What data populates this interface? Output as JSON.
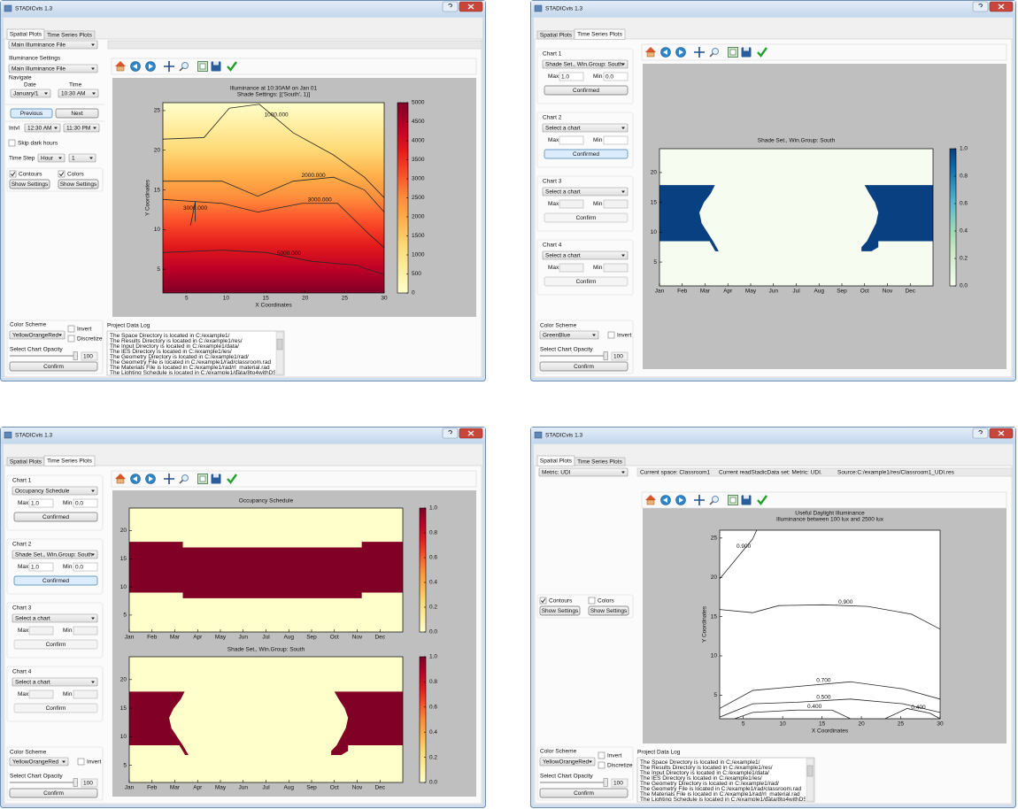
{
  "windows": [
    {
      "title": "STADICvis 1.3",
      "tabs": [
        "Spatial Plots",
        "Time Series Plots"
      ],
      "active_tab": 0,
      "file_select": "Main Illuminance File",
      "settings": {
        "label": "Illuminance Settings",
        "select": "Main Illuminance File",
        "navigate": "Navigate",
        "date_label": "Date",
        "time_label": "Time",
        "date": "January/1",
        "time": "10:30 AM",
        "previous": {
          "label": "Previous",
          "state": "focused"
        },
        "next": {
          "label": "Next",
          "state": "normal"
        },
        "intvl": "Intvl",
        "intvl_start": "12:30 AM",
        "intvl_end": "11:30 PM",
        "skip_dark": {
          "label": "Skip dark hours",
          "checked": false
        },
        "time_step": "Time Step",
        "step_unit": "Hour",
        "step_value": "1"
      },
      "contours": {
        "label": "Contours",
        "checked": true
      },
      "colors": {
        "label": "Colors",
        "checked": true
      },
      "show_settings": [
        "Show Settings",
        "Show Settings"
      ],
      "color_scheme": {
        "label": "Color Scheme",
        "select": "YellowOrangeRed",
        "invert": {
          "label": "Invert",
          "checked": false
        },
        "discretize": {
          "label": "Discretize",
          "checked": false
        },
        "opacity_label": "Select Chart Opacity",
        "opacity": "100",
        "confirm": "Confirm"
      },
      "log": {
        "label": "Project Data Log",
        "lines": [
          "The Space Directory is located in C:/example1/",
          "The Results Directory is located in C:/example1/res/",
          "The Input Directory is located in C:/example1/data/",
          "The IES Directory is located in C:/example1/ies/",
          "The Geometry Directory is located in C:/example1/rad/",
          "The Geometry File is located in C:/example1/rad/classroom.rad",
          "The Materials File is located in C:/example1/rad/rl_material.rad",
          "The Lighting Schedule is located in C:/example1/data/8to4withDST.60min.csv"
        ]
      },
      "plots": [
        {
          "type": "contour",
          "title": [
            "Illuminance at 10:30AM on Jan 01",
            "Shade Settings: [('South', 1)]"
          ],
          "xlabel": "X Coordinates",
          "ylabel": "Y Coordinates",
          "xlim": [
            2,
            30
          ],
          "ylim": [
            2,
            26
          ],
          "xticks": [
            5,
            10,
            15,
            20,
            25,
            30
          ],
          "yticks": [
            5,
            10,
            15,
            20,
            25
          ],
          "colorbar": {
            "lim": [
              0,
              5000
            ],
            "ticks": [
              0,
              500,
              1000,
              1500,
              2000,
              2500,
              3000,
              3500,
              4000,
              4500,
              5000
            ]
          },
          "contours": [
            {
              "label": "1000.000",
              "x": [
                2,
                7.2,
                10.4,
                14.2,
                18.5,
                23.6,
                27.5,
                30
              ],
              "y": [
                21.4,
                21.6,
                25.3,
                25.8,
                22.2,
                19.4,
                16.6,
                14
              ]
            },
            {
              "label": "2000.000",
              "x": [
                2,
                9.5,
                14,
                18.5,
                23.6,
                27.5,
                30
              ],
              "y": [
                16.1,
                16.1,
                14.2,
                16.1,
                16.6,
                15,
                12.2
              ]
            },
            {
              "label": "3000.000",
              "x": [
                2,
                9.5,
                14,
                19.6,
                24.1,
                28.1,
                30
              ],
              "y": [
                13.8,
                13.3,
                12.2,
                13.3,
                13.3,
                9.4,
                7.7
              ]
            },
            {
              "label": "3000.000",
              "x": [
                5.5,
                6.1,
                6.1
              ],
              "y": [
                10.5,
                13.5,
                11
              ]
            },
            {
              "label": "5000.000",
              "x": [
                2,
                9.5,
                15.1,
                20.8,
                26.4,
                30
              ],
              "y": [
                7.1,
                7.4,
                7.1,
                6,
                5.5,
                4.3
              ]
            }
          ]
        }
      ]
    },
    {
      "title": "STADICvis 1.3",
      "tabs": [
        "Spatial Plots",
        "Time Series Plots"
      ],
      "active_tab": 1,
      "charts": [
        {
          "label": "Chart 1",
          "select": "Shade Set., Win.Group: South",
          "max_label": "Max",
          "max": "1.0",
          "min_label": "Min",
          "min": "0.0",
          "button": "Confirmed",
          "state": "normal"
        },
        {
          "label": "Chart 2",
          "select": "Select a chart",
          "max_label": "Max",
          "min_label": "Min",
          "button": "Confirmed",
          "state": "focused"
        },
        {
          "label": "Chart 3",
          "select": "Select a chart",
          "max_label": "Max",
          "min_label": "Min",
          "button": "Confirm",
          "state": "disabled"
        },
        {
          "label": "Chart 4",
          "select": "Select a chart",
          "max_label": "Max",
          "min_label": "Min",
          "button": "Confirm",
          "state": "disabled"
        }
      ],
      "color_scheme": {
        "label": "Color Scheme",
        "select": "GreenBlue",
        "invert": {
          "label": "Invert",
          "checked": false
        },
        "opacity_label": "Select Chart Opacity",
        "opacity": "100",
        "confirm": "Confirm"
      },
      "plots": [
        {
          "type": "heatmap",
          "title": [
            "Shade Set., Win.Group: South"
          ],
          "categories": [
            "Jan",
            "Feb",
            "Mar",
            "Apr",
            "May",
            "Jun",
            "Jul",
            "Aug",
            "Sep",
            "Oct",
            "Nov",
            "Dec"
          ],
          "xlim": [
            0,
            12
          ],
          "ylim": [
            1,
            24
          ],
          "yticks": [
            5,
            10,
            15,
            20
          ],
          "colorbar": {
            "lim": [
              0,
              1
            ],
            "ticks": [
              {
                "value": 0,
                "label": "0.0"
              },
              {
                "value": 0.2,
                "label": "0.2"
              },
              {
                "value": 0.4,
                "label": "0.4"
              },
              {
                "value": 0.6,
                "label": "0.6"
              },
              {
                "value": 0.8,
                "label": "0.8"
              },
              {
                "value": 1,
                "label": "1.0"
              }
            ]
          },
          "regions": [
            {
              "x": [
                0,
                0,
                2.43,
                2.25,
                1.95,
                1.75,
                1.85,
                2.1,
                2.35,
                2.6,
                2.45,
                2.2
              ],
              "y": [
                8.5,
                17.9,
                17.9,
                16.5,
                15,
                13.3,
                11.5,
                10,
                8.5,
                6.8,
                6.8,
                8.5
              ]
            },
            {
              "x": [
                12,
                9,
                9.2,
                9.45,
                9.6,
                9.5,
                9.3,
                9.1,
                8.86,
                8.86,
                9.3,
                9.6,
                9.6,
                12
              ],
              "y": [
                17.9,
                17.9,
                16.5,
                15,
                13.3,
                11.5,
                10,
                8.5,
                7.5,
                6.8,
                6.8,
                7.5,
                8.5,
                8.5
              ]
            }
          ]
        }
      ]
    },
    {
      "title": "STADICvis 1.3",
      "tabs": [
        "Spatial Plots",
        "Time Series Plots"
      ],
      "active_tab": 1,
      "charts": [
        {
          "label": "Chart 1",
          "select": "Occupancy Schedule",
          "max_label": "Max",
          "max": "1.0",
          "min_label": "Min",
          "min": "0.0",
          "button": "Confirmed",
          "state": "normal"
        },
        {
          "label": "Chart 2",
          "select": "Shade Set., Win.Group: South",
          "max_label": "Max",
          "max": "1.0",
          "min_label": "Min",
          "min": "0.0",
          "button": "Confirmed",
          "state": "focused"
        },
        {
          "label": "Chart 3",
          "select": "Select a chart",
          "max_label": "Max",
          "min_label": "Min",
          "button": "Confirm",
          "state": "disabled"
        },
        {
          "label": "Chart 4",
          "select": "Select a chart",
          "max_label": "Max",
          "min_label": "Min",
          "button": "Confirm",
          "state": "disabled"
        }
      ],
      "color_scheme": {
        "label": "Color Scheme",
        "select": "YellowOrangeRed",
        "invert": {
          "label": "Invert",
          "checked": false
        },
        "opacity_label": "Select Chart Opacity",
        "opacity": "100",
        "confirm": "Confirm"
      },
      "plots": [
        {
          "type": "heatmap",
          "title": [
            "Occupancy Schedule"
          ],
          "categories": [
            "Jan",
            "Feb",
            "Mar",
            "Apr",
            "May",
            "Jun",
            "Jul",
            "Aug",
            "Sep",
            "Oct",
            "Nov",
            "Dec"
          ],
          "xlim": [
            0,
            12
          ],
          "ylim": [
            2,
            24
          ],
          "yticks": [
            5,
            10,
            15,
            20
          ],
          "colorbar": {
            "lim": [
              0,
              1
            ],
            "ticks": [
              {
                "value": 0,
                "label": "0.0"
              },
              {
                "value": 0.2,
                "label": "0.2"
              },
              {
                "value": 0.4,
                "label": "0.4"
              },
              {
                "value": 0.6,
                "label": "0.6"
              },
              {
                "value": 0.8,
                "label": "0.8"
              },
              {
                "value": 1,
                "label": "1.0"
              }
            ]
          },
          "regions": [
            {
              "x": [
                0,
                0,
                2.35,
                2.35,
                10.2,
                10.2,
                12,
                12,
                10.2,
                10.2,
                2.35,
                2.35
              ],
              "y": [
                9,
                18,
                18,
                17,
                17,
                18,
                18,
                9,
                9,
                8,
                8,
                9
              ]
            }
          ]
        },
        {
          "type": "heatmap",
          "title": [
            "Shade Set., Win.Group: South"
          ],
          "categories": [
            "Jan",
            "Feb",
            "Mar",
            "Apr",
            "May",
            "Jun",
            "Jul",
            "Aug",
            "Sep",
            "Oct",
            "Nov",
            "Dec"
          ],
          "xlim": [
            0,
            12
          ],
          "ylim": [
            2,
            24
          ],
          "yticks": [
            5,
            10,
            15,
            20
          ],
          "colorbar": {
            "lim": [
              0,
              1
            ],
            "ticks": [
              {
                "value": 0,
                "label": "0.0"
              },
              {
                "value": 0.2,
                "label": "0.2"
              },
              {
                "value": 0.4,
                "label": "0.4"
              },
              {
                "value": 0.6,
                "label": "0.6"
              },
              {
                "value": 0.8,
                "label": "0.8"
              },
              {
                "value": 1,
                "label": "1.0"
              }
            ]
          },
          "regions": [
            {
              "x": [
                0,
                0,
                2.43,
                2.25,
                1.95,
                1.75,
                1.85,
                2.1,
                2.35,
                2.6,
                2.45,
                2.2
              ],
              "y": [
                8.5,
                17.9,
                17.9,
                16.5,
                15,
                13.3,
                11.5,
                10,
                8.5,
                6.8,
                6.8,
                8.5
              ]
            },
            {
              "x": [
                12,
                9,
                9.2,
                9.45,
                9.6,
                9.5,
                9.3,
                9.1,
                8.86,
                8.86,
                9.3,
                9.6,
                9.6,
                12
              ],
              "y": [
                17.9,
                17.9,
                16.5,
                15,
                13.3,
                11.5,
                10,
                8.5,
                7.5,
                6.8,
                6.8,
                7.5,
                8.5,
                8.5
              ]
            }
          ]
        }
      ]
    },
    {
      "title": "STADICvis 1.3",
      "tabs": [
        "Spatial Plots",
        "Time Series Plots"
      ],
      "active_tab": 0,
      "metric_select": "Metric: UDI",
      "info": [
        "Current space: Classroom1",
        "Current readStadicData set: Metric: UDI.",
        "Source:C:/example1/res/Classroom1_UDI.res"
      ],
      "contours": {
        "label": "Contours",
        "checked": true
      },
      "colors": {
        "label": "Colors",
        "checked": false
      },
      "show_settings": [
        "Show Settings",
        "Show Settings"
      ],
      "color_scheme": {
        "label": "Color Scheme",
        "select": "YellowOrangeRed",
        "invert": {
          "label": "Invert",
          "checked": false
        },
        "discretize": {
          "label": "Discretize",
          "checked": false
        },
        "opacity_label": "Select Chart Opacity",
        "opacity": "100",
        "confirm": "Confirm"
      },
      "log": {
        "label": "Project Data Log",
        "lines": [
          "The Space Directory is located in C:/example1/",
          "The Results Directory is located in C:/example1/res/",
          "The Input Directory is located in C:/example1/data/",
          "The IES Directory is located in C:/example1/ies/",
          "The Geometry Directory is located in C:/example1/rad/",
          "The Geometry File is located in C:/example1/rad/classroom.rad",
          "The Materials File is located in C:/example1/rad/rl_material.rad",
          "The Lighting Schedule is located in C:/example1/data/8to4withDST.60min.csv"
        ]
      },
      "plots": [
        {
          "type": "contour",
          "title": [
            "Useful Daylight Illuminance",
            "Illuminance between 100 lux and 2500 lux"
          ],
          "xlabel": "X Coordinates",
          "ylabel": "Y Coordinates",
          "xlim": [
            2,
            30
          ],
          "ylim": [
            2,
            26
          ],
          "xticks": [
            5,
            10,
            15,
            20,
            25,
            30
          ],
          "yticks": [
            5,
            10,
            15,
            20,
            25
          ],
          "contours": [
            {
              "label": "0.900",
              "x": [
                2,
                3.9,
                6.2,
                6.7
              ],
              "y": [
                19.8,
                22.1,
                24.9,
                26
              ]
            },
            {
              "label": "0.900",
              "x": [
                2,
                6.2,
                9.5,
                15.2,
                20.8,
                26.4,
                30
              ],
              "y": [
                15.9,
                15.5,
                16.4,
                16.5,
                16.3,
                15.3,
                13.4
              ]
            },
            {
              "label": "0.700",
              "x": [
                2,
                6.2,
                11.8,
                18.6,
                25.3,
                30
              ],
              "y": [
                3.3,
                5.6,
                6.1,
                6.7,
                5.8,
                4.5
              ]
            },
            {
              "label": "0.500",
              "x": [
                2,
                6.2,
                11.8,
                18.6,
                25.3,
                30
              ],
              "y": [
                2.2,
                3.9,
                4.1,
                4.5,
                3.9,
                2.8
              ]
            },
            {
              "label": "0.400",
              "x": [
                3.9,
                6.2,
                11.8,
                16.3,
                18.6
              ],
              "y": [
                2,
                2.8,
                3.1,
                3.1,
                2
              ]
            },
            {
              "label": "0.400",
              "x": [
                23,
                25.8,
                28.7,
                30
              ],
              "y": [
                2,
                3.3,
                2.7,
                2
              ]
            }
          ]
        }
      ]
    }
  ]
}
